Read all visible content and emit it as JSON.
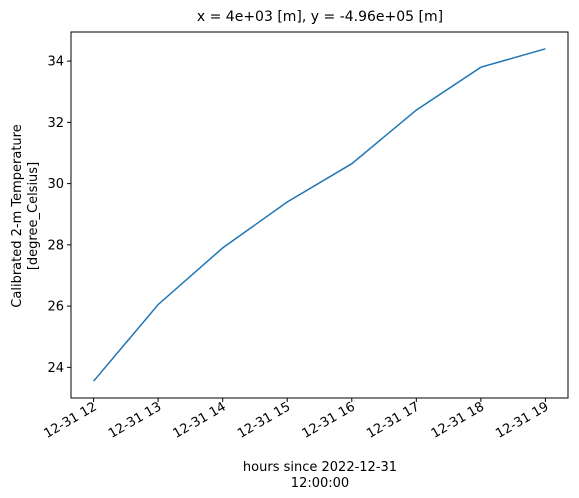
{
  "chart_data": {
    "type": "line",
    "title": "x = 4e+03 [m], y = -4.96e+05 [m]",
    "xlabel": [
      "hours since 2022-12-31",
      "12:00:00"
    ],
    "ylabel": [
      "Calibrated 2-m Temperature",
      "[degree_Celsius]"
    ],
    "x": [
      "2022-12-31 12:00",
      "2022-12-31 13:00",
      "2022-12-31 14:00",
      "2022-12-31 15:00",
      "2022-12-31 16:00",
      "2022-12-31 17:00",
      "2022-12-31 18:00",
      "2022-12-31 19:00"
    ],
    "x_tick_labels": [
      "12-31 12",
      "12-31 13",
      "12-31 14",
      "12-31 15",
      "12-31 16",
      "12-31 17",
      "12-31 18",
      "12-31 19"
    ],
    "series": [
      {
        "values": [
          23.55,
          26.05,
          27.9,
          29.4,
          30.65,
          32.4,
          33.8,
          34.4
        ],
        "color": "#1f77b4"
      }
    ],
    "ylim": [
      23.0,
      34.95
    ],
    "y_ticks": [
      24,
      26,
      28,
      30,
      32,
      34
    ],
    "grid": false,
    "legend": "none"
  }
}
